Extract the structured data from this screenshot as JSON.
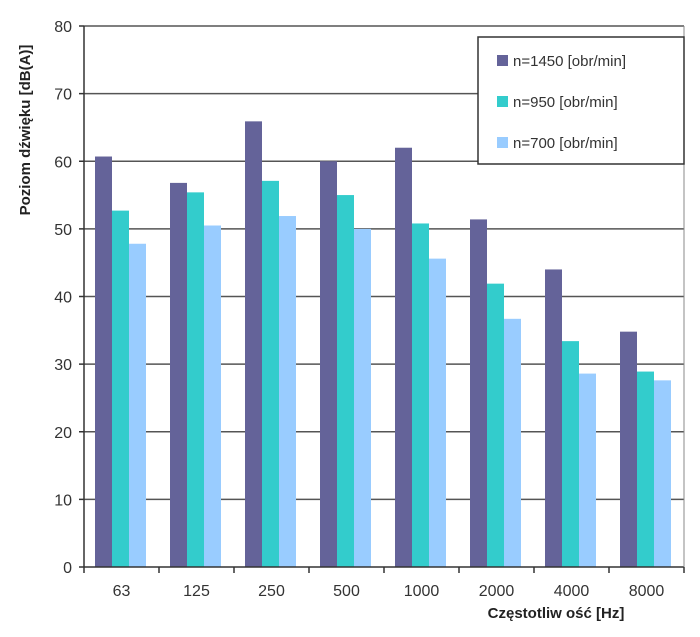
{
  "chart_data": {
    "type": "bar",
    "title": "",
    "xlabel": "Częstotliw ość [Hz]",
    "ylabel": "Poziom dźwięku [dB(A)]",
    "ylim": [
      0,
      80
    ],
    "yticks": [
      "0",
      "10",
      "20",
      "30",
      "40",
      "50",
      "60",
      "70",
      "80"
    ],
    "grid": true,
    "legend_position": "top-right",
    "categories": [
      "63",
      "125",
      "250",
      "500",
      "1000",
      "2000",
      "4000",
      "8000"
    ],
    "series": [
      {
        "name": "n=1450 [obr/min]",
        "color": "#646399",
        "values": [
          60.7,
          56.8,
          65.9,
          60.0,
          62.0,
          51.4,
          44.0,
          34.8
        ]
      },
      {
        "name": "n=950 [obr/min]",
        "color": "#33CCCC",
        "values": [
          52.7,
          55.4,
          57.1,
          55.0,
          50.8,
          41.9,
          33.4,
          28.9
        ]
      },
      {
        "name": "n=700 [obr/min]",
        "color": "#99CCFF",
        "values": [
          47.8,
          50.5,
          51.9,
          50.0,
          45.6,
          36.7,
          28.6,
          27.6
        ]
      }
    ]
  }
}
